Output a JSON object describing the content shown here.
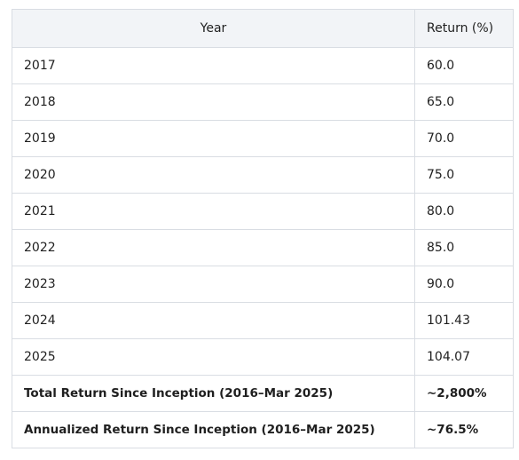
{
  "table": {
    "headers": [
      "Year",
      "Return (%)"
    ],
    "rows": [
      {
        "year": "2017",
        "return": "60.0"
      },
      {
        "year": "2018",
        "return": "65.0"
      },
      {
        "year": "2019",
        "return": "70.0"
      },
      {
        "year": "2020",
        "return": "75.0"
      },
      {
        "year": "2021",
        "return": "80.0"
      },
      {
        "year": "2022",
        "return": "85.0"
      },
      {
        "year": "2023",
        "return": "90.0"
      },
      {
        "year": "2024",
        "return": "101.43"
      },
      {
        "year": "2025",
        "return": "104.07"
      }
    ],
    "summary": [
      {
        "label": "Total Return Since Inception (2016–Mar 2025)",
        "value": "~2,800%"
      },
      {
        "label": "Annualized Return Since Inception (2016–Mar 2025)",
        "value": "~76.5%"
      }
    ]
  },
  "colors": {
    "header_bg": "#f2f4f7",
    "border": "#d9dde3",
    "text": "#1f1f1f"
  }
}
